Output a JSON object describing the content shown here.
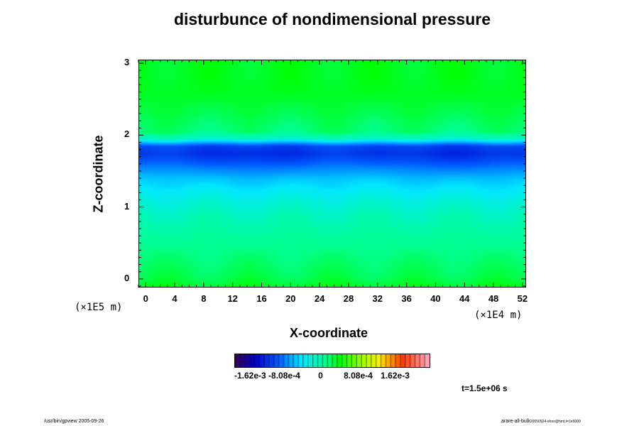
{
  "chart_data": {
    "type": "heatmap",
    "title": "disturbunce of nondimensional pressure",
    "xlabel": "X-coordinate",
    "ylabel": "Z-coordinate",
    "x_unit": "(×1E4 m)",
    "y_unit": "(×1E5 m)",
    "xlim": [
      -1,
      52.5
    ],
    "ylim": [
      -0.12,
      3.05
    ],
    "xticks": [
      0,
      4,
      8,
      12,
      16,
      20,
      24,
      28,
      32,
      36,
      40,
      44,
      48,
      52
    ],
    "yticks": [
      0,
      1,
      2,
      3
    ],
    "profile": {
      "z": [
        -0.12,
        0.0,
        0.3,
        0.6,
        0.9,
        1.1,
        1.25,
        1.4,
        1.55,
        1.65,
        1.75,
        1.85,
        1.9,
        1.96,
        2.05,
        2.3,
        2.6,
        3.05
      ],
      "value": [
        0.0001,
        0.0,
        -0.0001,
        -0.0002,
        -0.00035,
        -0.0005,
        -0.00065,
        -0.0008,
        -0.00105,
        -0.00125,
        -0.0014,
        -0.0013,
        -0.0009,
        -0.0004,
        -0.0001,
        0.0,
        0.0001,
        0.0001
      ]
    },
    "colorbar": {
      "min": -0.0021,
      "max": 0.0021,
      "tick_labels": [
        "-1.62e-3",
        "-8.08e-4",
        "0",
        "8.08e-4",
        "1.62e-3"
      ]
    },
    "time_label": "t=1.5e+06 s"
  },
  "footer": {
    "left": "/usr/bin/gpview 2005-09-26",
    "right_main": "arare-all-bulk",
    "right_small": "20050924-ohno@hmt,t=1e6000"
  }
}
